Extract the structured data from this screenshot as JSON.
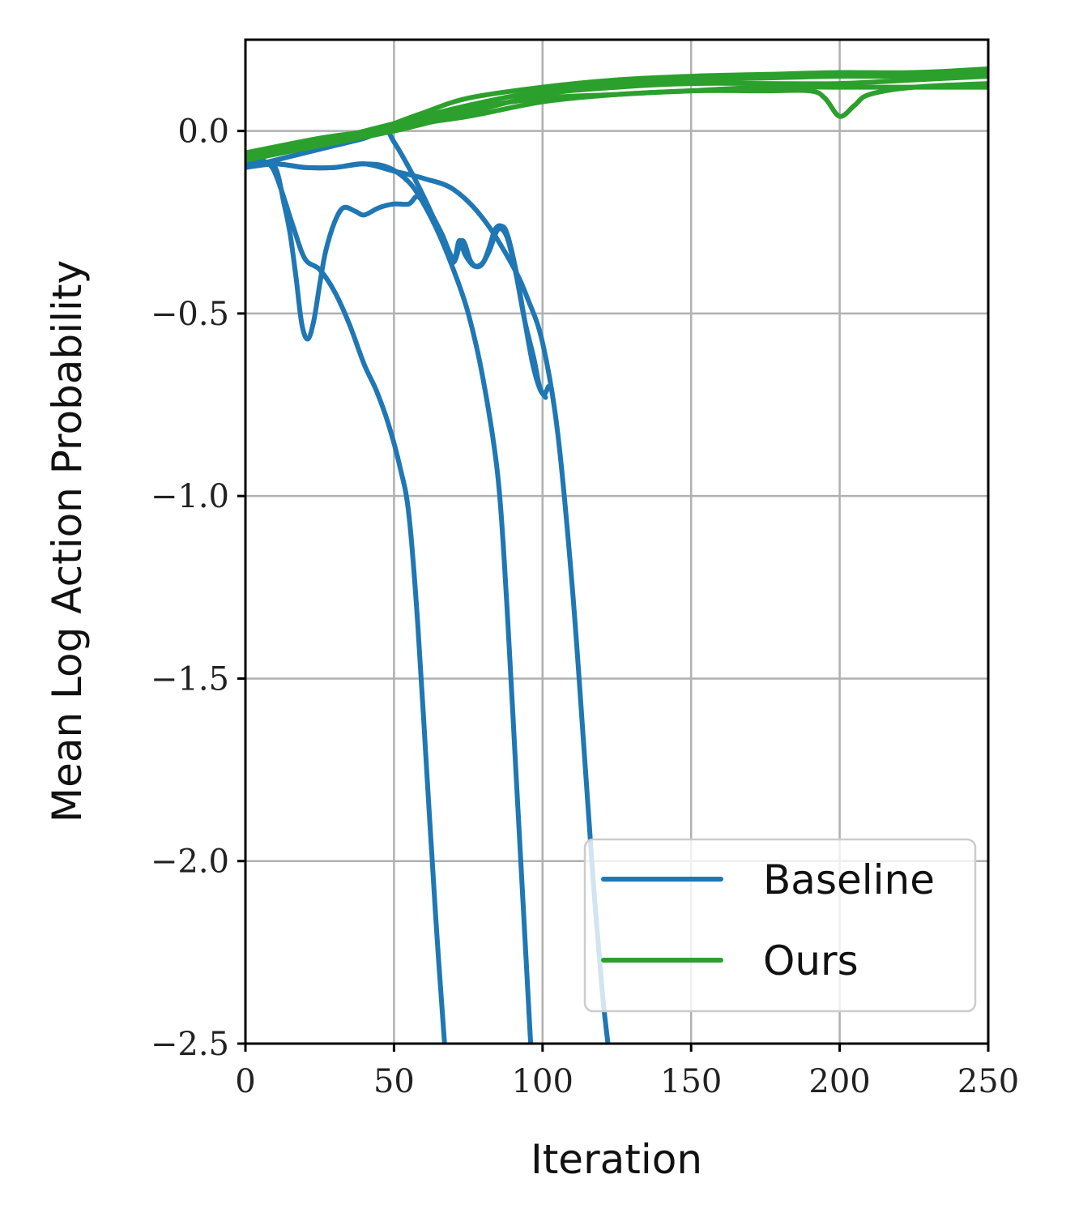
{
  "chart_data": {
    "type": "line",
    "title": "",
    "xlabel": "Iteration",
    "ylabel": "Mean Log Action Probability",
    "xlim": [
      0,
      250
    ],
    "ylim": [
      -2.5,
      0.25
    ],
    "xticks": [
      0,
      50,
      100,
      150,
      200,
      250
    ],
    "xtick_labels": [
      "0",
      "50",
      "100",
      "150",
      "200",
      "250"
    ],
    "yticks": [
      0.0,
      -0.5,
      -1.0,
      -1.5,
      -2.0,
      -2.5
    ],
    "ytick_labels": [
      "0.0",
      "−0.5",
      "−1.0",
      "−1.5",
      "−2.0",
      "−2.5"
    ],
    "grid": true,
    "legend": {
      "placement": "lower-right",
      "entries": [
        {
          "label": "Baseline",
          "color": "#1f77b4"
        },
        {
          "label": "Ours",
          "color": "#2ca02c"
        }
      ]
    },
    "series": [
      {
        "group": "Baseline",
        "color": "#1f77b4",
        "points": [
          [
            0,
            -0.1
          ],
          [
            5,
            -0.09
          ],
          [
            10,
            -0.1
          ],
          [
            13,
            -0.2
          ],
          [
            15,
            -0.28
          ],
          [
            17,
            -0.4
          ],
          [
            19,
            -0.53
          ],
          [
            21,
            -0.57
          ],
          [
            23,
            -0.52
          ],
          [
            25,
            -0.42
          ],
          [
            27,
            -0.33
          ],
          [
            30,
            -0.25
          ],
          [
            33,
            -0.21
          ],
          [
            37,
            -0.22
          ],
          [
            40,
            -0.23
          ],
          [
            45,
            -0.21
          ],
          [
            50,
            -0.2
          ],
          [
            55,
            -0.2
          ],
          [
            58,
            -0.18
          ],
          [
            62,
            -0.22
          ],
          [
            66,
            -0.28
          ],
          [
            70,
            -0.35
          ],
          [
            72,
            -0.3
          ],
          [
            74,
            -0.34
          ],
          [
            77,
            -0.37
          ],
          [
            80,
            -0.36
          ],
          [
            82,
            -0.32
          ],
          [
            84,
            -0.27
          ],
          [
            86,
            -0.26
          ],
          [
            88,
            -0.28
          ],
          [
            91,
            -0.38
          ],
          [
            94,
            -0.52
          ],
          [
            97,
            -0.65
          ],
          [
            100,
            -0.72
          ],
          [
            102,
            -0.7
          ]
        ]
      },
      {
        "group": "Baseline",
        "color": "#1f77b4",
        "points": [
          [
            0,
            -0.09
          ],
          [
            5,
            -0.08
          ],
          [
            9,
            -0.1
          ],
          [
            12,
            -0.16
          ],
          [
            16,
            -0.26
          ],
          [
            20,
            -0.35
          ],
          [
            25,
            -0.38
          ],
          [
            30,
            -0.44
          ],
          [
            35,
            -0.53
          ],
          [
            40,
            -0.64
          ],
          [
            44,
            -0.71
          ],
          [
            48,
            -0.8
          ],
          [
            52,
            -0.92
          ],
          [
            55,
            -1.05
          ],
          [
            58,
            -1.35
          ],
          [
            61,
            -1.75
          ],
          [
            64,
            -2.15
          ],
          [
            67,
            -2.5
          ]
        ]
      },
      {
        "group": "Baseline",
        "color": "#1f77b4",
        "points": [
          [
            0,
            -0.1
          ],
          [
            10,
            -0.09
          ],
          [
            20,
            -0.1
          ],
          [
            30,
            -0.1
          ],
          [
            40,
            -0.09
          ],
          [
            48,
            -0.1
          ],
          [
            55,
            -0.14
          ],
          [
            60,
            -0.2
          ],
          [
            65,
            -0.28
          ],
          [
            70,
            -0.38
          ],
          [
            75,
            -0.5
          ],
          [
            80,
            -0.68
          ],
          [
            85,
            -0.95
          ],
          [
            88,
            -1.3
          ],
          [
            91,
            -1.75
          ],
          [
            94,
            -2.2
          ],
          [
            96,
            -2.5
          ]
        ]
      },
      {
        "group": "Baseline",
        "color": "#1f77b4",
        "points": [
          [
            0,
            -0.1
          ],
          [
            10,
            -0.08
          ],
          [
            20,
            -0.06
          ],
          [
            30,
            -0.04
          ],
          [
            40,
            -0.02
          ],
          [
            47,
            0.0
          ],
          [
            50,
            -0.03
          ],
          [
            55,
            -0.1
          ],
          [
            60,
            -0.18
          ],
          [
            64,
            -0.25
          ],
          [
            67,
            -0.3
          ],
          [
            70,
            -0.36
          ],
          [
            73,
            -0.3
          ],
          [
            76,
            -0.36
          ],
          [
            79,
            -0.37
          ],
          [
            82,
            -0.33
          ],
          [
            85,
            -0.27
          ],
          [
            88,
            -0.29
          ],
          [
            91,
            -0.39
          ],
          [
            94,
            -0.52
          ],
          [
            97,
            -0.62
          ],
          [
            99,
            -0.7
          ],
          [
            101,
            -0.73
          ]
        ]
      },
      {
        "group": "Baseline",
        "color": "#1f77b4",
        "points": [
          [
            0,
            -0.1
          ],
          [
            10,
            -0.09
          ],
          [
            20,
            -0.1
          ],
          [
            30,
            -0.1
          ],
          [
            40,
            -0.09
          ],
          [
            50,
            -0.11
          ],
          [
            60,
            -0.13
          ],
          [
            70,
            -0.16
          ],
          [
            80,
            -0.24
          ],
          [
            90,
            -0.37
          ],
          [
            95,
            -0.46
          ],
          [
            100,
            -0.58
          ],
          [
            105,
            -0.82
          ],
          [
            110,
            -1.25
          ],
          [
            114,
            -1.7
          ],
          [
            117,
            -2.05
          ],
          [
            120,
            -2.35
          ],
          [
            122,
            -2.5
          ]
        ]
      },
      {
        "group": "Ours",
        "color": "#2ca02c",
        "points": [
          [
            0,
            -0.07
          ],
          [
            25,
            -0.03
          ],
          [
            45,
            0.0
          ],
          [
            50,
            0.02
          ],
          [
            60,
            0.05
          ],
          [
            75,
            0.09
          ],
          [
            100,
            0.12
          ],
          [
            125,
            0.14
          ],
          [
            150,
            0.15
          ],
          [
            175,
            0.155
          ],
          [
            200,
            0.16
          ],
          [
            225,
            0.16
          ],
          [
            250,
            0.17
          ]
        ]
      },
      {
        "group": "Ours",
        "color": "#2ca02c",
        "points": [
          [
            0,
            -0.06
          ],
          [
            25,
            -0.02
          ],
          [
            50,
            0.01
          ],
          [
            75,
            0.06
          ],
          [
            100,
            0.09
          ],
          [
            125,
            0.1
          ],
          [
            150,
            0.11
          ],
          [
            175,
            0.11
          ],
          [
            190,
            0.11
          ],
          [
            195,
            0.09
          ],
          [
            200,
            0.04
          ],
          [
            205,
            0.07
          ],
          [
            210,
            0.1
          ],
          [
            225,
            0.12
          ],
          [
            250,
            0.13
          ]
        ]
      },
      {
        "group": "Ours",
        "color": "#2ca02c",
        "points": [
          [
            0,
            -0.07
          ],
          [
            25,
            -0.03
          ],
          [
            50,
            0.02
          ],
          [
            75,
            0.07
          ],
          [
            100,
            0.11
          ],
          [
            125,
            0.13
          ],
          [
            150,
            0.14
          ],
          [
            175,
            0.145
          ],
          [
            200,
            0.15
          ],
          [
            225,
            0.15
          ],
          [
            250,
            0.16
          ]
        ]
      },
      {
        "group": "Ours",
        "color": "#2ca02c",
        "points": [
          [
            0,
            -0.08
          ],
          [
            25,
            -0.04
          ],
          [
            50,
            0.0
          ],
          [
            75,
            0.05
          ],
          [
            100,
            0.1
          ],
          [
            125,
            0.12
          ],
          [
            150,
            0.13
          ],
          [
            175,
            0.13
          ],
          [
            200,
            0.13
          ],
          [
            225,
            0.14
          ],
          [
            250,
            0.15
          ]
        ]
      },
      {
        "group": "Ours",
        "color": "#2ca02c",
        "points": [
          [
            0,
            -0.07
          ],
          [
            25,
            -0.03
          ],
          [
            50,
            0.01
          ],
          [
            75,
            0.04
          ],
          [
            100,
            0.08
          ],
          [
            125,
            0.1
          ],
          [
            150,
            0.11
          ],
          [
            175,
            0.12
          ],
          [
            200,
            0.12
          ],
          [
            225,
            0.12
          ],
          [
            250,
            0.12
          ]
        ]
      }
    ]
  }
}
